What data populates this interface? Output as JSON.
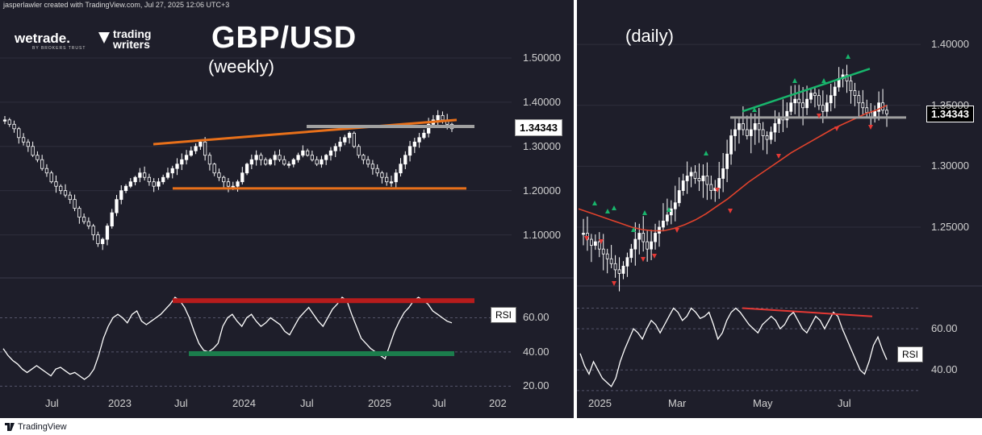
{
  "attribution": "jasperlawler created with TradingView.com, Jul 27, 2025 12:06 UTC+3",
  "footer": {
    "brand": "TradingView"
  },
  "logos": {
    "wetrade": "wetrade.",
    "wetrade_sub": "BY BROKERS TRUST",
    "tradingwriters": [
      "trading",
      "writers"
    ]
  },
  "icons": [
    "tradingview-logo-icon",
    "tradingwriters-logo-icon",
    "wetrade-logo-icon"
  ],
  "colors": {
    "background": "#1e1e2a",
    "orange_trend": "#e8701a",
    "red_level": "#b71c1c",
    "green_level": "#1b7d4c",
    "gray_level": "#a0a0a0",
    "ma": "#e0422c",
    "green_trend": "#18b56c",
    "red_div": "#e53935",
    "rsi": "#ffffff",
    "candle": "#ffffff"
  },
  "chart_data": [
    {
      "type": "line",
      "name": "weekly",
      "title": "GBP/USD",
      "subtitle": "(weekly)",
      "price_axis": {
        "ticks": [
          "1.50000",
          "1.40000",
          "1.30000",
          "1.20000",
          "1.10000"
        ],
        "ylim": [
          1.03,
          1.54
        ]
      },
      "last_price": "1.34343",
      "x_ticks": [
        "Jul",
        "2023",
        "Jul",
        "2024",
        "Jul",
        "2025",
        "Jul",
        "202"
      ],
      "price_close": [
        1.36,
        1.35,
        1.34,
        1.32,
        1.31,
        1.3,
        1.28,
        1.27,
        1.25,
        1.24,
        1.22,
        1.21,
        1.2,
        1.19,
        1.18,
        1.16,
        1.14,
        1.13,
        1.12,
        1.1,
        1.08,
        1.09,
        1.12,
        1.15,
        1.18,
        1.2,
        1.21,
        1.22,
        1.23,
        1.24,
        1.23,
        1.22,
        1.21,
        1.22,
        1.23,
        1.24,
        1.25,
        1.26,
        1.27,
        1.28,
        1.29,
        1.3,
        1.31,
        1.28,
        1.26,
        1.24,
        1.23,
        1.22,
        1.21,
        1.21,
        1.22,
        1.24,
        1.26,
        1.27,
        1.28,
        1.27,
        1.26,
        1.27,
        1.28,
        1.27,
        1.26,
        1.26,
        1.27,
        1.28,
        1.29,
        1.28,
        1.27,
        1.26,
        1.27,
        1.28,
        1.29,
        1.3,
        1.31,
        1.32,
        1.33,
        1.3,
        1.28,
        1.27,
        1.26,
        1.25,
        1.24,
        1.23,
        1.22,
        1.22,
        1.24,
        1.26,
        1.28,
        1.3,
        1.31,
        1.32,
        1.33,
        1.35,
        1.36,
        1.37,
        1.36,
        1.35,
        1.34
      ],
      "orange_upper_line": [
        1.305,
        1.36
      ],
      "orange_lower_line": 1.205,
      "gray_level": 1.345,
      "rsi": {
        "ticks": [
          "60.00",
          "40.00",
          "20.00"
        ],
        "ylim": [
          15,
          80
        ],
        "label": "RSI",
        "values": [
          42,
          38,
          35,
          33,
          30,
          28,
          30,
          32,
          30,
          28,
          26,
          30,
          31,
          29,
          27,
          28,
          26,
          24,
          26,
          30,
          38,
          48,
          55,
          60,
          62,
          60,
          57,
          62,
          64,
          58,
          56,
          58,
          60,
          62,
          65,
          68,
          72,
          70,
          66,
          60,
          52,
          45,
          41,
          40,
          42,
          45,
          55,
          60,
          62,
          58,
          55,
          60,
          62,
          58,
          55,
          57,
          60,
          58,
          56,
          52,
          50,
          55,
          60,
          63,
          66,
          62,
          58,
          55,
          60,
          65,
          68,
          72,
          70,
          62,
          55,
          48,
          45,
          42,
          40,
          38,
          36,
          44,
          52,
          58,
          63,
          66,
          70,
          72,
          70,
          68,
          64,
          62,
          60,
          58,
          57
        ],
        "red_level": 70,
        "green_level": 39
      }
    },
    {
      "type": "line",
      "name": "daily",
      "title": "(daily)",
      "price_axis": {
        "ticks": [
          "1.40000",
          "1.35000",
          "1.30000",
          "1.25000"
        ],
        "ylim": [
          1.205,
          1.41
        ]
      },
      "last_price": "1.34343",
      "x_ticks": [
        "2025",
        "Mar",
        "May",
        "Jul"
      ],
      "price_close": [
        1.245,
        1.24,
        1.235,
        1.238,
        1.232,
        1.228,
        1.224,
        1.22,
        1.215,
        1.212,
        1.218,
        1.225,
        1.232,
        1.24,
        1.245,
        1.238,
        1.232,
        1.238,
        1.245,
        1.25,
        1.255,
        1.26,
        1.265,
        1.27,
        1.28,
        1.288,
        1.292,
        1.295,
        1.29,
        1.288,
        1.292,
        1.285,
        1.28,
        1.282,
        1.29,
        1.298,
        1.31,
        1.325,
        1.33,
        1.335,
        1.33,
        1.325,
        1.33,
        1.335,
        1.33,
        1.325,
        1.322,
        1.328,
        1.335,
        1.34,
        1.338,
        1.345,
        1.352,
        1.355,
        1.352,
        1.348,
        1.355,
        1.36,
        1.358,
        1.35,
        1.345,
        1.352,
        1.358,
        1.365,
        1.372,
        1.375,
        1.37,
        1.362,
        1.358,
        1.352,
        1.348,
        1.344,
        1.34,
        1.345,
        1.352,
        1.346,
        1.343
      ],
      "ma": [
        1.265,
        1.262,
        1.259,
        1.256,
        1.253,
        1.25,
        1.248,
        1.247,
        1.247,
        1.249,
        1.252,
        1.256,
        1.261,
        1.267,
        1.273,
        1.28,
        1.287,
        1.293,
        1.299,
        1.305,
        1.311,
        1.316,
        1.321,
        1.326,
        1.331,
        1.335,
        1.339,
        1.343,
        1.346,
        1.35
      ],
      "green_trend": [
        1.345,
        1.38
      ],
      "gray_level": 1.34,
      "rsi": {
        "ticks": [
          "60.00",
          "40.00"
        ],
        "ylim": [
          28,
          78
        ],
        "label": "RSI",
        "values": [
          48,
          42,
          38,
          44,
          40,
          36,
          34,
          32,
          36,
          44,
          50,
          55,
          60,
          58,
          55,
          60,
          64,
          62,
          58,
          62,
          66,
          70,
          68,
          64,
          66,
          70,
          68,
          65,
          66,
          68,
          62,
          55,
          58,
          64,
          68,
          70,
          68,
          65,
          62,
          60,
          58,
          62,
          64,
          66,
          64,
          60,
          62,
          66,
          68,
          64,
          60,
          58,
          62,
          66,
          64,
          60,
          64,
          68,
          66,
          60,
          55,
          50,
          45,
          40,
          38,
          44,
          52,
          56,
          50,
          45
        ],
        "red_divergence": [
          70,
          66
        ]
      }
    }
  ]
}
